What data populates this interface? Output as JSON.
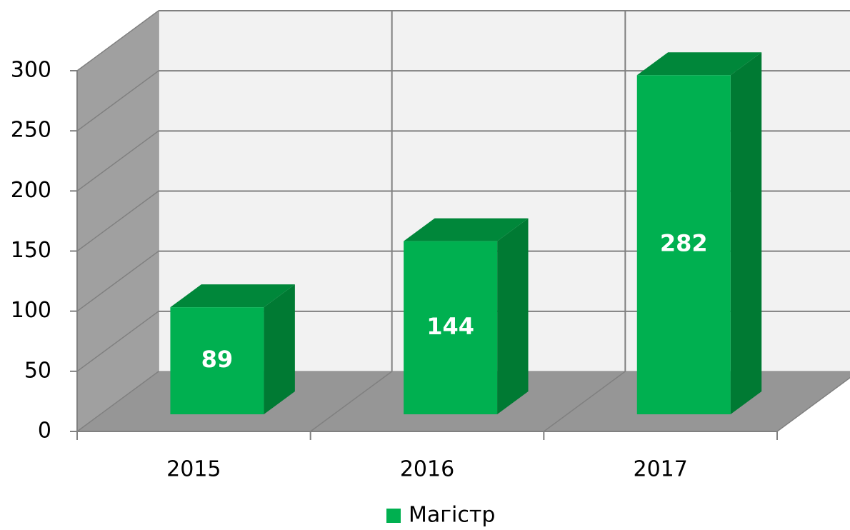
{
  "chart_data": {
    "type": "bar3d",
    "categories": [
      "2015",
      "2016",
      "2017"
    ],
    "series": [
      {
        "name": "Магістр",
        "color": "#00b050",
        "values": [
          89,
          144,
          282
        ]
      }
    ],
    "ylim": [
      0,
      300
    ],
    "yticks": [
      0,
      50,
      100,
      150,
      200,
      250,
      300
    ],
    "grid": true,
    "legend": "bottom"
  }
}
